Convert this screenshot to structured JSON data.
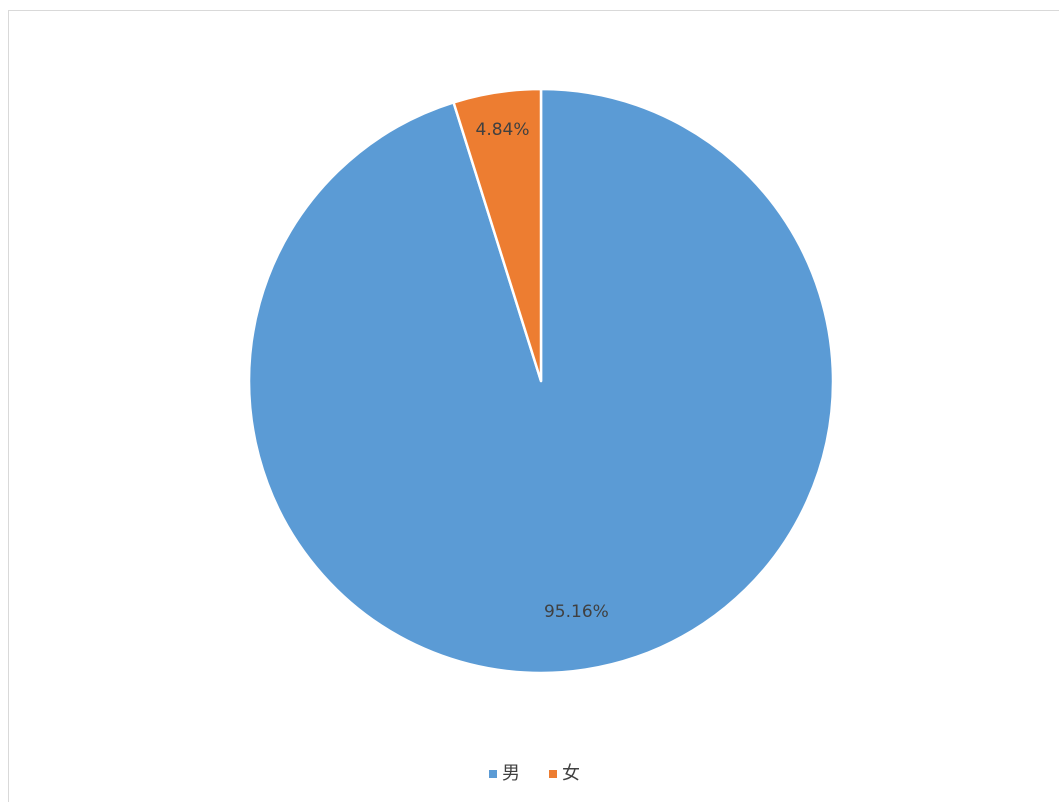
{
  "chart_data": {
    "type": "pie",
    "categories": [
      "男",
      "女"
    ],
    "values": [
      95.16,
      4.84
    ],
    "value_labels": [
      "95.16%",
      "4.84%"
    ],
    "colors": [
      "#5b9bd5",
      "#ed7d31"
    ],
    "legend": "bottom"
  }
}
